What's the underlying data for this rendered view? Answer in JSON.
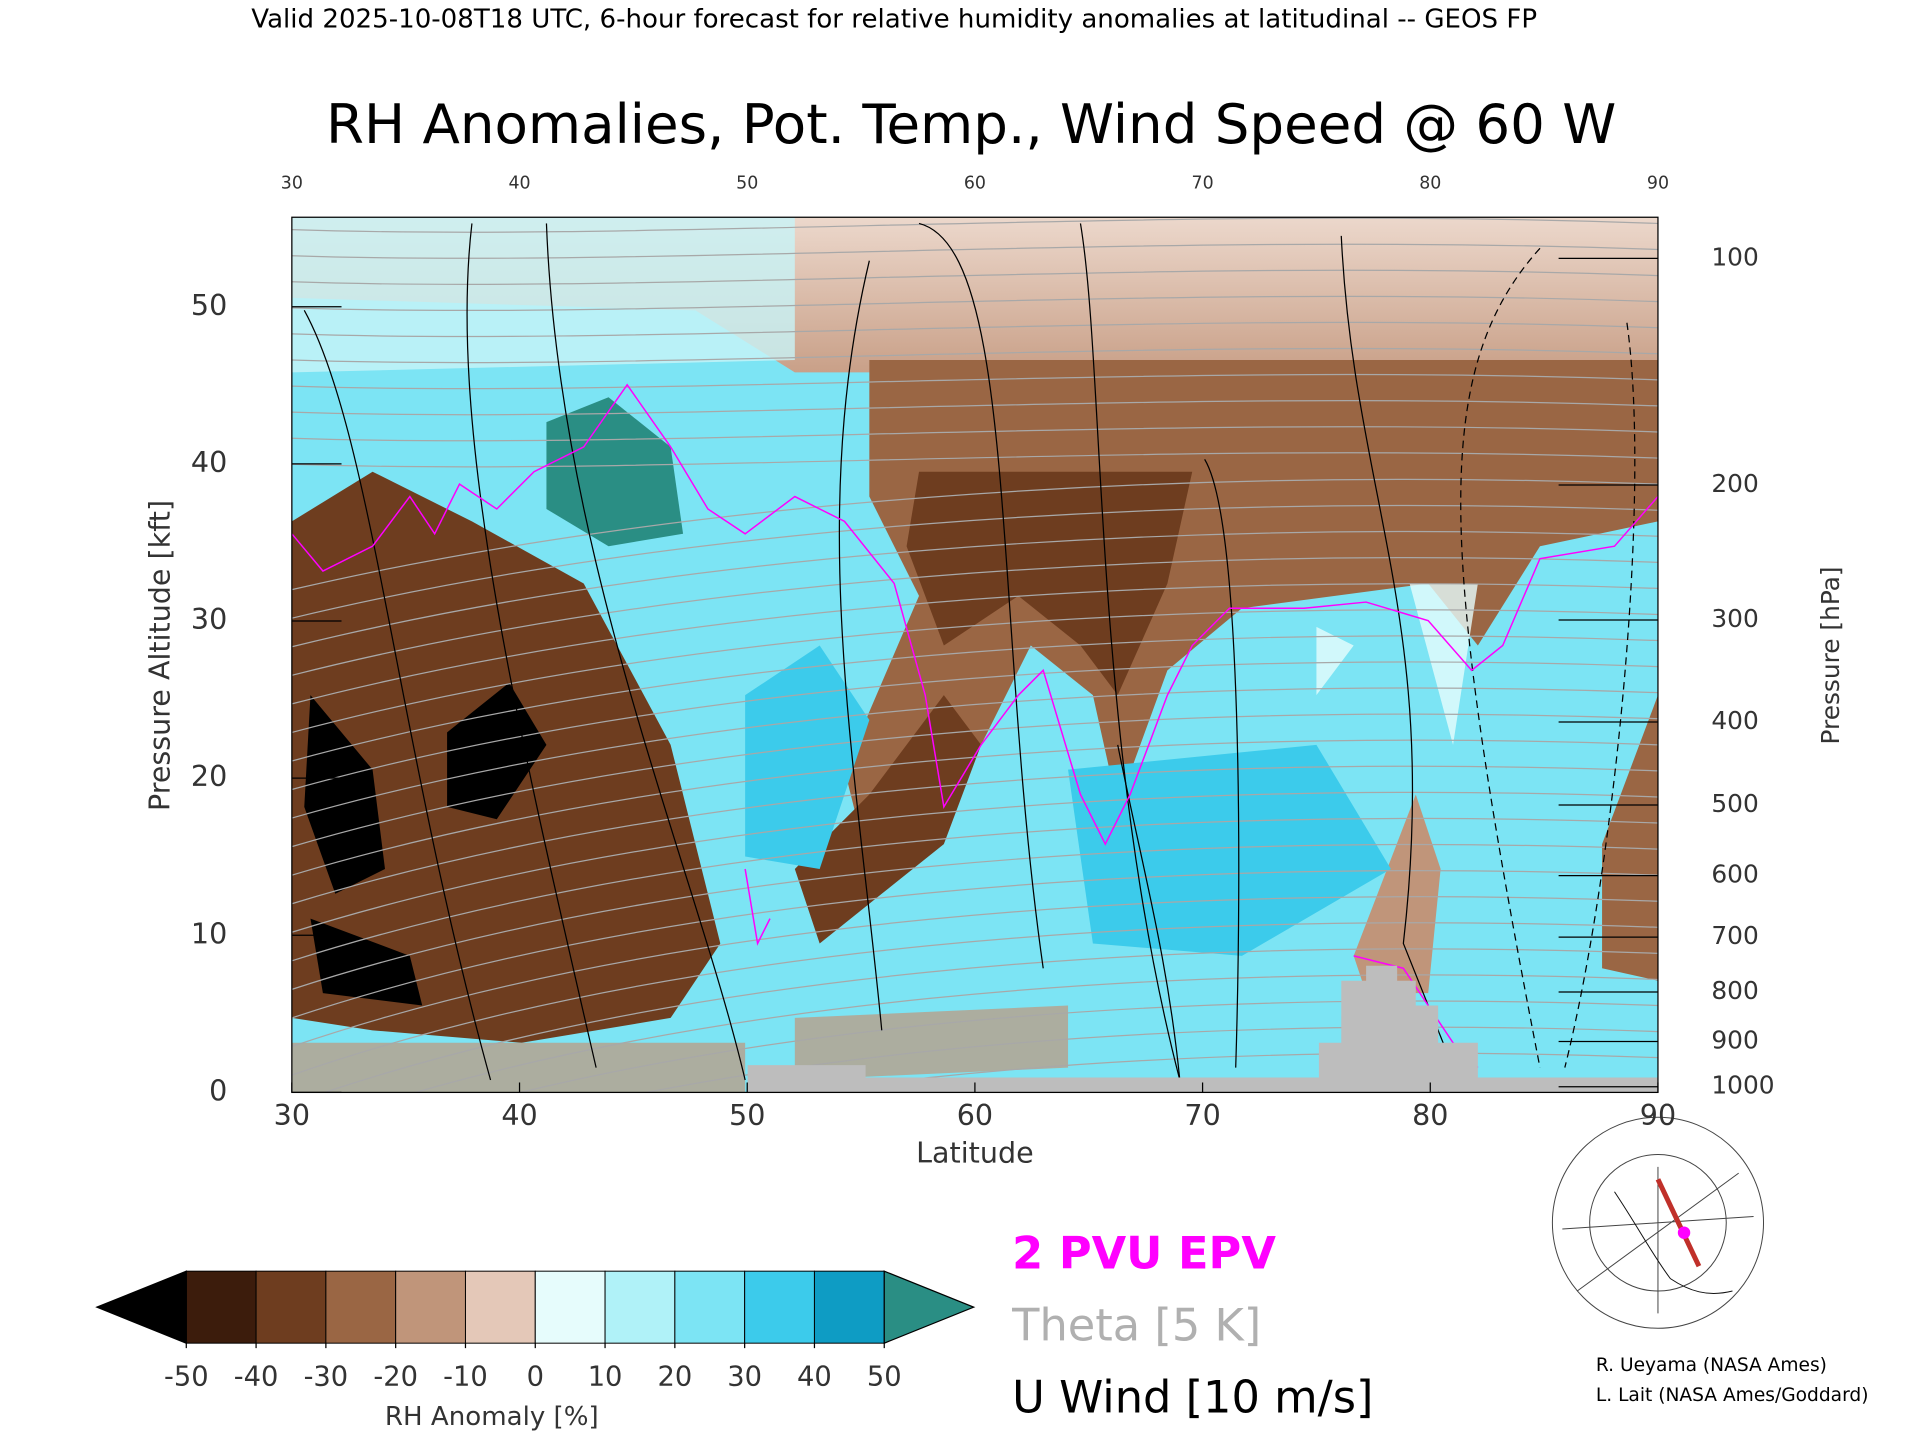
{
  "header": "Valid 2025-10-08T18 UTC, 6-hour forecast for relative humidity anomalies at latitudinal -- GEOS FP",
  "chart_data": {
    "type": "heatmap",
    "title": "RH Anomalies, Pot. Temp., Wind Speed @ 60 W",
    "x_label": "Latitude",
    "y_label": "Pressure Altitude [kft]",
    "y2_label": "Pressure [hPa]",
    "xlim": [
      30,
      90
    ],
    "xticks": [
      30,
      40,
      50,
      60,
      70,
      80,
      90
    ],
    "ylim": [
      0,
      55.7
    ],
    "yticks": [
      0,
      10,
      20,
      30,
      40,
      50
    ],
    "y2ticks": [
      100,
      200,
      300,
      400,
      500,
      600,
      700,
      800,
      900,
      1000
    ],
    "colorbar": {
      "label": "RH Anomaly [%]",
      "ticks": [
        -50,
        -40,
        -30,
        -20,
        -10,
        0,
        10,
        20,
        30,
        40,
        50
      ],
      "colors": [
        "#3c1c0c",
        "#6e3d1f",
        "#9a6644",
        "#c0957a",
        "#e4c8b8",
        "#e6fcfc",
        "#b0f2f8",
        "#7ce4f4",
        "#3ccbeb",
        "#0e9cc4"
      ],
      "under_color": "#000000",
      "over_color": "#2a8e84"
    },
    "legend": [
      {
        "name": "2 PVU EPV",
        "color": "#ff00ff"
      },
      {
        "name": "Theta [5 K]",
        "color": "#b0b0b0"
      },
      {
        "name": "U Wind [10 m/s]",
        "color": "#000000"
      }
    ]
  },
  "credits": [
    "R. Ueyama (NASA Ames)",
    "L. Lait (NASA Ames/Goddard)"
  ]
}
